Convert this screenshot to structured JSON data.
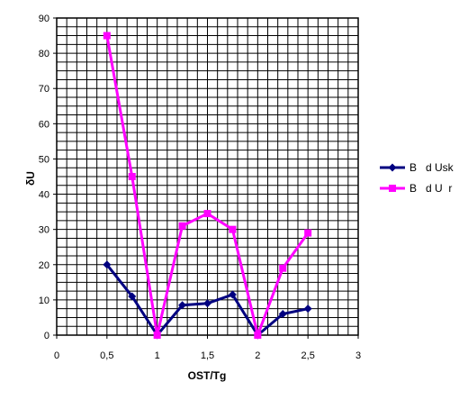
{
  "chart_data": {
    "type": "line",
    "xlabel": "OST/Tg",
    "ylabel": "δU",
    "xlim": [
      0,
      3
    ],
    "ylim": [
      0,
      90
    ],
    "x_ticks": [
      "0",
      "0,5",
      "1",
      "1,5",
      "2",
      "2,5",
      "3"
    ],
    "y_ticks": [
      "0",
      "10",
      "20",
      "30",
      "40",
      "50",
      "60",
      "70",
      "80",
      "90"
    ],
    "grid": true,
    "legend_position": "right",
    "x": [
      0.5,
      0.75,
      1,
      1.25,
      1.5,
      1.75,
      2,
      2.25,
      2.5
    ],
    "series": [
      {
        "name": "B   d Usk",
        "color": "#000080",
        "marker": "diamond",
        "values": [
          20,
          11,
          0,
          8.5,
          9,
          11.5,
          0,
          6,
          7.5
        ]
      },
      {
        "name": "B   d U  r",
        "color": "#ff00ff",
        "marker": "square",
        "values": [
          85,
          45,
          0,
          31,
          34.5,
          30,
          0,
          19,
          29
        ]
      }
    ]
  }
}
